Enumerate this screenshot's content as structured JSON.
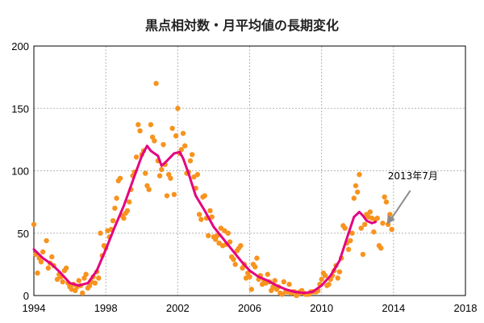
{
  "chart_data": {
    "type": "scatter",
    "title": "黒点相対数・月平均値の長期変化",
    "xlim": [
      1994,
      2018
    ],
    "ylim": [
      0,
      200
    ],
    "xticks": [
      1994,
      1998,
      2002,
      2006,
      2010,
      2014,
      2018
    ],
    "yticks": [
      0,
      50,
      100,
      150,
      200
    ],
    "grid": true,
    "annotation": {
      "text": "2013年7月",
      "x": 2013.5,
      "y": 57
    },
    "colors": {
      "points": "#f7931e",
      "smoothed": "#e4007f",
      "arrow": "#8c8c8c",
      "grid": "#b5b5b5"
    },
    "series": [
      {
        "kind": "points",
        "points": [
          [
            1994.0,
            57
          ],
          [
            1994.1,
            33
          ],
          [
            1994.2,
            18
          ],
          [
            1994.3,
            30
          ],
          [
            1994.4,
            27
          ],
          [
            1994.5,
            35
          ],
          [
            1994.7,
            44
          ],
          [
            1994.8,
            22
          ],
          [
            1994.9,
            26
          ],
          [
            1995.0,
            31
          ],
          [
            1995.1,
            24
          ],
          [
            1995.3,
            13
          ],
          [
            1995.4,
            17
          ],
          [
            1995.5,
            15
          ],
          [
            1995.6,
            11
          ],
          [
            1995.7,
            20
          ],
          [
            1995.8,
            22
          ],
          [
            1995.9,
            10
          ],
          [
            1996.0,
            7
          ],
          [
            1996.1,
            5
          ],
          [
            1996.2,
            9
          ],
          [
            1996.3,
            4
          ],
          [
            1996.4,
            7
          ],
          [
            1996.5,
            12
          ],
          [
            1996.6,
            8
          ],
          [
            1996.7,
            2
          ],
          [
            1996.8,
            14
          ],
          [
            1996.9,
            17
          ],
          [
            1997.0,
            6
          ],
          [
            1997.1,
            8
          ],
          [
            1997.2,
            11
          ],
          [
            1997.3,
            15
          ],
          [
            1997.4,
            10
          ],
          [
            1997.5,
            19
          ],
          [
            1997.6,
            14
          ],
          [
            1997.7,
            50
          ],
          [
            1997.8,
            32
          ],
          [
            1997.9,
            40
          ],
          [
            1998.0,
            38
          ],
          [
            1998.1,
            52
          ],
          [
            1998.2,
            47
          ],
          [
            1998.3,
            53
          ],
          [
            1998.4,
            60
          ],
          [
            1998.5,
            70
          ],
          [
            1998.6,
            78
          ],
          [
            1998.7,
            92
          ],
          [
            1998.8,
            94
          ],
          [
            1998.9,
            64
          ],
          [
            1999.0,
            62
          ],
          [
            1999.1,
            66
          ],
          [
            1999.2,
            68
          ],
          [
            1999.3,
            75
          ],
          [
            1999.4,
            85
          ],
          [
            1999.5,
            96
          ],
          [
            1999.6,
            99
          ],
          [
            1999.7,
            111
          ],
          [
            1999.8,
            137
          ],
          [
            1999.9,
            132
          ],
          [
            2000.0,
            113
          ],
          [
            2000.1,
            116
          ],
          [
            2000.2,
            98
          ],
          [
            2000.3,
            88
          ],
          [
            2000.4,
            85
          ],
          [
            2000.5,
            137
          ],
          [
            2000.6,
            127
          ],
          [
            2000.7,
            124
          ],
          [
            2000.8,
            170
          ],
          [
            2000.9,
            108
          ],
          [
            2001.0,
            96
          ],
          [
            2001.1,
            101
          ],
          [
            2001.2,
            121
          ],
          [
            2001.3,
            105
          ],
          [
            2001.4,
            80
          ],
          [
            2001.5,
            97
          ],
          [
            2001.6,
            94
          ],
          [
            2001.7,
            134
          ],
          [
            2001.8,
            81
          ],
          [
            2001.9,
            128
          ],
          [
            2002.0,
            150
          ],
          [
            2002.1,
            114
          ],
          [
            2002.2,
            117
          ],
          [
            2002.3,
            130
          ],
          [
            2002.4,
            120
          ],
          [
            2002.5,
            98
          ],
          [
            2002.6,
            99
          ],
          [
            2002.7,
            108
          ],
          [
            2002.8,
            113
          ],
          [
            2002.9,
            95
          ],
          [
            2003.0,
            86
          ],
          [
            2003.1,
            97
          ],
          [
            2003.2,
            65
          ],
          [
            2003.3,
            61
          ],
          [
            2003.4,
            79
          ],
          [
            2003.5,
            80
          ],
          [
            2003.6,
            62
          ],
          [
            2003.7,
            48
          ],
          [
            2003.8,
            68
          ],
          [
            2003.9,
            63
          ],
          [
            2004.0,
            47
          ],
          [
            2004.1,
            45
          ],
          [
            2004.2,
            48
          ],
          [
            2004.3,
            42
          ],
          [
            2004.4,
            54
          ],
          [
            2004.5,
            40
          ],
          [
            2004.6,
            52
          ],
          [
            2004.7,
            41
          ],
          [
            2004.8,
            50
          ],
          [
            2004.9,
            43
          ],
          [
            2005.0,
            31
          ],
          [
            2005.1,
            29
          ],
          [
            2005.2,
            25
          ],
          [
            2005.3,
            36
          ],
          [
            2005.4,
            38
          ],
          [
            2005.5,
            40
          ],
          [
            2005.6,
            22
          ],
          [
            2005.7,
            25
          ],
          [
            2005.8,
            14
          ],
          [
            2005.9,
            18
          ],
          [
            2006.0,
            15
          ],
          [
            2006.1,
            5
          ],
          [
            2006.2,
            25
          ],
          [
            2006.3,
            23
          ],
          [
            2006.4,
            30
          ],
          [
            2006.5,
            13
          ],
          [
            2006.6,
            16
          ],
          [
            2006.7,
            9
          ],
          [
            2006.8,
            12
          ],
          [
            2006.9,
            10
          ],
          [
            2007.0,
            17
          ],
          [
            2007.1,
            11
          ],
          [
            2007.2,
            4
          ],
          [
            2007.3,
            7
          ],
          [
            2007.4,
            12
          ],
          [
            2007.5,
            5
          ],
          [
            2007.6,
            7
          ],
          [
            2007.7,
            2
          ],
          [
            2007.8,
            1
          ],
          [
            2007.9,
            11
          ],
          [
            2008.0,
            3
          ],
          [
            2008.1,
            3
          ],
          [
            2008.2,
            9
          ],
          [
            2008.3,
            2
          ],
          [
            2008.4,
            3
          ],
          [
            2008.5,
            3
          ],
          [
            2008.6,
            0
          ],
          [
            2008.7,
            1
          ],
          [
            2008.8,
            3
          ],
          [
            2008.9,
            4
          ],
          [
            2009.0,
            2
          ],
          [
            2009.1,
            1
          ],
          [
            2009.2,
            1
          ],
          [
            2009.3,
            1
          ],
          [
            2009.4,
            3
          ],
          [
            2009.5,
            3
          ],
          [
            2009.6,
            3
          ],
          [
            2009.7,
            3
          ],
          [
            2009.8,
            4
          ],
          [
            2009.9,
            9
          ],
          [
            2010.0,
            13
          ],
          [
            2010.1,
            18
          ],
          [
            2010.2,
            16
          ],
          [
            2010.3,
            8
          ],
          [
            2010.4,
            9
          ],
          [
            2010.5,
            13
          ],
          [
            2010.6,
            16
          ],
          [
            2010.7,
            20
          ],
          [
            2010.8,
            24
          ],
          [
            2010.9,
            14
          ],
          [
            2011.0,
            19
          ],
          [
            2011.1,
            30
          ],
          [
            2011.2,
            56
          ],
          [
            2011.3,
            54
          ],
          [
            2011.4,
            42
          ],
          [
            2011.5,
            37
          ],
          [
            2011.6,
            44
          ],
          [
            2011.7,
            50
          ],
          [
            2011.8,
            78
          ],
          [
            2011.9,
            88
          ],
          [
            2012.0,
            83
          ],
          [
            2012.1,
            97
          ],
          [
            2012.2,
            54
          ],
          [
            2012.3,
            33
          ],
          [
            2012.4,
            57
          ],
          [
            2012.5,
            65
          ],
          [
            2012.6,
            63
          ],
          [
            2012.7,
            67
          ],
          [
            2012.8,
            62
          ],
          [
            2012.9,
            51
          ],
          [
            2013.0,
            61
          ],
          [
            2013.1,
            62
          ],
          [
            2013.2,
            40
          ],
          [
            2013.3,
            38
          ],
          [
            2013.4,
            58
          ],
          [
            2013.5,
            79
          ],
          [
            2013.6,
            75
          ],
          [
            2013.7,
            57
          ],
          [
            2013.8,
            65
          ],
          [
            2013.9,
            53
          ]
        ]
      },
      {
        "kind": "smoothed",
        "points": [
          [
            1994.0,
            37
          ],
          [
            1994.5,
            30
          ],
          [
            1995.0,
            25
          ],
          [
            1995.5,
            18
          ],
          [
            1996.0,
            10
          ],
          [
            1996.5,
            8
          ],
          [
            1997.0,
            10
          ],
          [
            1997.5,
            20
          ],
          [
            1998.0,
            37
          ],
          [
            1998.5,
            55
          ],
          [
            1999.0,
            72
          ],
          [
            1999.5,
            92
          ],
          [
            2000.0,
            112
          ],
          [
            2000.3,
            120
          ],
          [
            2000.5,
            116
          ],
          [
            2000.9,
            112
          ],
          [
            2001.1,
            104
          ],
          [
            2001.4,
            108
          ],
          [
            2001.8,
            114
          ],
          [
            2002.1,
            115
          ],
          [
            2002.3,
            110
          ],
          [
            2002.6,
            98
          ],
          [
            2003.0,
            80
          ],
          [
            2003.5,
            68
          ],
          [
            2004.0,
            55
          ],
          [
            2004.5,
            46
          ],
          [
            2005.0,
            37
          ],
          [
            2005.5,
            28
          ],
          [
            2006.0,
            20
          ],
          [
            2006.5,
            15
          ],
          [
            2007.0,
            12
          ],
          [
            2007.5,
            8
          ],
          [
            2008.0,
            5
          ],
          [
            2008.5,
            3
          ],
          [
            2009.0,
            2
          ],
          [
            2009.5,
            3
          ],
          [
            2010.0,
            8
          ],
          [
            2010.5,
            16
          ],
          [
            2011.0,
            28
          ],
          [
            2011.5,
            50
          ],
          [
            2011.8,
            63
          ],
          [
            2012.1,
            67
          ],
          [
            2012.3,
            64
          ],
          [
            2012.5,
            60
          ],
          [
            2012.8,
            58
          ],
          [
            2013.0,
            59
          ]
        ]
      }
    ]
  }
}
